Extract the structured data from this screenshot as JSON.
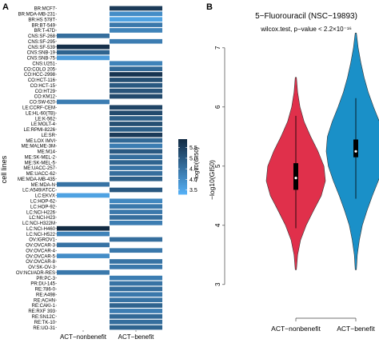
{
  "colors": {
    "scale_low": "#56b1f7",
    "scale_high": "#132b43",
    "violin_nonbenefit": "#e0304b",
    "violin_benefit": "#1a90c8",
    "na_fill": "#ffffff",
    "box": "#000000"
  },
  "panel_labels": {
    "a": "A",
    "b": "B"
  },
  "chart_data": [
    {
      "type": "heatmap",
      "ylabel": "cell lines",
      "columns": [
        "ACT−nonbenefit",
        "ACT−benefit"
      ],
      "rows": [
        "BR:MCF7",
        "BR:MDA-MB-231",
        "BR:HS 578T",
        "BR:BT-549",
        "BR:T-47D",
        "CNS:SF-268",
        "CNS:SF-295",
        "CNS:SF-539",
        "CNS:SNB-19",
        "CNS:SNB-75",
        "CNS:U251",
        "CO:COLO 205",
        "CO:HCC-2998",
        "CO:HCT-116",
        "CO:HCT-15",
        "CO:HT29",
        "CO:KM12",
        "CO:SW-620",
        "LE:CCRF-CEM",
        "LE:HL-60(TB)",
        "LE:K-562",
        "LE:MOLT-4",
        "LE:RPMI-8226",
        "LE:SR",
        "ME:LOX IMVI",
        "ME:MALME-3M",
        "ME:M14",
        "ME:SK-MEL-2",
        "ME:SK-MEL-5",
        "ME:UACC-257",
        "ME:UACC-62",
        "ME:MDA-MB-435",
        "ME:MDA-N",
        "LC:A549/ATCC",
        "LC:EKVX",
        "LC:HOP-62",
        "LC:HOP-92",
        "LC:NCI-H226",
        "LC:NCI-H23",
        "LC:NCI-H322M",
        "LC:NCI-H460",
        "LC:NCI-H522",
        "OV:IGROV1",
        "OV:OVCAR-3",
        "OV:OVCAR-4",
        "OV:OVCAR-5",
        "OV:OVCAR-8",
        "OV:SK-OV-3",
        "OV:NCI/ADR-RES",
        "PR:PC-3",
        "PR:DU-145",
        "RE:786-0",
        "RE:A498",
        "RE:ACHN",
        "RE:CAKI-1",
        "RE:RXF 393",
        "RE:SN12C",
        "RE:TK-10",
        "RE:UO-31"
      ],
      "values": [
        [
          null,
          5.6
        ],
        [
          null,
          4.0
        ],
        [
          null,
          3.6
        ],
        [
          null,
          4.4
        ],
        [
          null,
          4.2
        ],
        [
          4.6,
          null
        ],
        [
          null,
          4.3
        ],
        [
          5.8,
          null
        ],
        [
          4.8,
          null
        ],
        [
          3.7,
          null
        ],
        [
          null,
          4.2
        ],
        [
          null,
          4.7
        ],
        [
          null,
          5.7
        ],
        [
          null,
          5.2
        ],
        [
          null,
          5.0
        ],
        [
          null,
          5.1
        ],
        [
          null,
          5.3
        ],
        [
          4.3,
          null
        ],
        [
          null,
          5.4
        ],
        [
          null,
          5.3
        ],
        [
          null,
          4.9
        ],
        [
          null,
          5.2
        ],
        [
          null,
          4.9
        ],
        [
          null,
          5.6
        ],
        [
          null,
          4.7
        ],
        [
          null,
          4.3
        ],
        [
          null,
          5.0
        ],
        [
          null,
          4.6
        ],
        [
          null,
          4.8
        ],
        [
          null,
          4.5
        ],
        [
          null,
          4.6
        ],
        [
          null,
          4.9
        ],
        [
          4.5,
          null
        ],
        [
          null,
          5.0
        ],
        [
          3.6,
          null
        ],
        [
          null,
          4.1
        ],
        [
          null,
          4.4
        ],
        [
          null,
          4.4
        ],
        [
          null,
          4.6
        ],
        [
          null,
          4.3
        ],
        [
          5.9,
          null
        ],
        [
          4.2,
          null
        ],
        [
          null,
          4.6
        ],
        [
          4.5,
          null
        ],
        [
          null,
          4.4
        ],
        [
          4.0,
          null
        ],
        [
          null,
          4.5
        ],
        [
          null,
          4.4
        ],
        [
          4.4,
          null
        ],
        [
          null,
          4.3
        ],
        [
          null,
          4.5
        ],
        [
          null,
          4.6
        ],
        [
          null,
          4.4
        ],
        [
          null,
          4.5
        ],
        [
          null,
          4.8
        ],
        [
          null,
          4.3
        ],
        [
          null,
          4.7
        ],
        [
          null,
          4.6
        ],
        [
          null,
          4.8
        ]
      ],
      "legend": {
        "title": "−log10(GI50)",
        "ticks": [
          5.5,
          5.0,
          4.5,
          4.0,
          3.5
        ],
        "range": [
          3.3,
          5.9
        ]
      }
    },
    {
      "type": "violin",
      "title": "5−Fluorouracil (NSC−19893)",
      "subtitle": "wilcox.test, p−value < 2.2×10⁻¹⁶",
      "ylabel": "−log10(GI50)",
      "ylim": [
        2.7,
        7.2
      ],
      "yticks": [
        3,
        4,
        5,
        6,
        7
      ],
      "categories": [
        "ACT−nonbenefit",
        "ACT−benefit"
      ],
      "series": [
        {
          "category": "ACT−nonbenefit",
          "whisker": [
            3.95,
            5.85
          ],
          "q1": 4.6,
          "q3": 5.05,
          "median": 4.8,
          "density": [
            [
              3.25,
              0.02
            ],
            [
              3.5,
              0.06
            ],
            [
              3.75,
              0.16
            ],
            [
              4.0,
              0.35
            ],
            [
              4.25,
              0.6
            ],
            [
              4.5,
              0.86
            ],
            [
              4.75,
              1.0
            ],
            [
              5.0,
              0.95
            ],
            [
              5.25,
              0.75
            ],
            [
              5.5,
              0.5
            ],
            [
              5.75,
              0.28
            ],
            [
              6.0,
              0.14
            ],
            [
              6.25,
              0.06
            ],
            [
              6.5,
              0.02
            ]
          ]
        },
        {
          "category": "ACT−benefit",
          "whisker": [
            4.45,
            6.15
          ],
          "q1": 5.15,
          "q3": 5.45,
          "median": 5.25,
          "density": [
            [
              3.25,
              0.02
            ],
            [
              3.5,
              0.05
            ],
            [
              3.75,
              0.12
            ],
            [
              4.0,
              0.22
            ],
            [
              4.25,
              0.38
            ],
            [
              4.5,
              0.56
            ],
            [
              4.75,
              0.76
            ],
            [
              5.0,
              0.93
            ],
            [
              5.25,
              1.0
            ],
            [
              5.5,
              0.96
            ],
            [
              5.75,
              0.8
            ],
            [
              6.0,
              0.6
            ],
            [
              6.25,
              0.42
            ],
            [
              6.5,
              0.28
            ],
            [
              6.75,
              0.17
            ],
            [
              7.0,
              0.08
            ],
            [
              7.25,
              0.02
            ]
          ]
        }
      ]
    }
  ]
}
